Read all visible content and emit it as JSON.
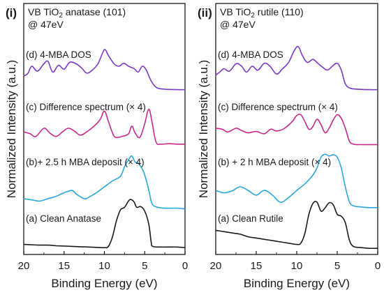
{
  "chart_data": [
    {
      "type": "line",
      "panel_label": "(i)",
      "title_prefix": "VB TiO",
      "title_sub": "2",
      "title_suffix": " anatase (101)",
      "subtitle": "@ 47eV",
      "xlabel": "Binding Energy (eV)",
      "ylabel": "Normalized Intensity (a.u.)",
      "xlim": [
        20,
        0
      ],
      "x_reversed": true,
      "x_ticks": [
        20,
        15,
        10,
        5,
        0
      ],
      "y_ticks": "none",
      "grid": false,
      "series": [
        {
          "name": "(a) Clean Anatase",
          "color": "#1a1a1a",
          "points": [
            [
              20,
              0.08
            ],
            [
              19,
              0.075
            ],
            [
              18,
              0.07
            ],
            [
              17,
              0.07
            ],
            [
              16,
              0.06
            ],
            [
              15,
              0.055
            ],
            [
              14,
              0.05
            ],
            [
              13,
              0.045
            ],
            [
              12,
              0.04
            ],
            [
              11,
              0.035
            ],
            [
              10,
              0.03
            ],
            [
              9.5,
              0.05
            ],
            [
              9,
              0.2
            ],
            [
              8.5,
              0.45
            ],
            [
              8,
              0.62
            ],
            [
              7.5,
              0.66
            ],
            [
              7,
              0.76
            ],
            [
              6.7,
              0.78
            ],
            [
              6.3,
              0.74
            ],
            [
              6,
              0.66
            ],
            [
              5.5,
              0.67
            ],
            [
              5,
              0.6
            ],
            [
              4.5,
              0.4
            ],
            [
              4.2,
              0.12
            ],
            [
              4,
              0.05
            ],
            [
              3,
              0.04
            ],
            [
              2,
              0.04
            ],
            [
              1,
              0.04
            ],
            [
              0,
              0.03
            ]
          ]
        },
        {
          "name": "(b)+ 2.5 h MBA deposit (× 4)",
          "color": "#29a8de",
          "points": [
            [
              20,
              0.2
            ],
            [
              19,
              0.18
            ],
            [
              18,
              0.16
            ],
            [
              17,
              0.2
            ],
            [
              16,
              0.24
            ],
            [
              15,
              0.3
            ],
            [
              14,
              0.34
            ],
            [
              13.5,
              0.28
            ],
            [
              12.5,
              0.2
            ],
            [
              12,
              0.22
            ],
            [
              11,
              0.3
            ],
            [
              10,
              0.4
            ],
            [
              9,
              0.5
            ],
            [
              8,
              0.58
            ],
            [
              7.5,
              0.74
            ],
            [
              7,
              0.86
            ],
            [
              6.6,
              0.92
            ],
            [
              6.2,
              0.82
            ],
            [
              5.8,
              0.8
            ],
            [
              5.3,
              0.7
            ],
            [
              5,
              0.6
            ],
            [
              4.5,
              0.35
            ],
            [
              4.1,
              0.12
            ],
            [
              3.5,
              0.06
            ],
            [
              2.5,
              0.04
            ],
            [
              1,
              0.04
            ],
            [
              0,
              0.03
            ]
          ]
        },
        {
          "name": "(c) Difference spectrum (× 4)",
          "color": "#c8278c",
          "points": [
            [
              20,
              0.32
            ],
            [
              19.2,
              0.28
            ],
            [
              18.5,
              0.22
            ],
            [
              17.5,
              0.4
            ],
            [
              16.8,
              0.3
            ],
            [
              16,
              0.22
            ],
            [
              15.2,
              0.32
            ],
            [
              14.5,
              0.4
            ],
            [
              13.8,
              0.35
            ],
            [
              13,
              0.25
            ],
            [
              12.2,
              0.32
            ],
            [
              11.2,
              0.46
            ],
            [
              10.5,
              0.6
            ],
            [
              10,
              0.78
            ],
            [
              9.5,
              0.55
            ],
            [
              9,
              0.3
            ],
            [
              8.6,
              0.2
            ],
            [
              7.8,
              0.22
            ],
            [
              7,
              0.28
            ],
            [
              6.6,
              0.45
            ],
            [
              6.2,
              0.3
            ],
            [
              5.6,
              0.2
            ],
            [
              5,
              0.5
            ],
            [
              4.5,
              0.82
            ],
            [
              4.1,
              0.55
            ],
            [
              3.6,
              0.1
            ],
            [
              3,
              0.05
            ],
            [
              2,
              0.06
            ],
            [
              1,
              0.05
            ],
            [
              0,
              0.05
            ]
          ]
        },
        {
          "name": "(d) 4-MBA DOS",
          "color": "#7b38c8",
          "points": [
            [
              20,
              0.3
            ],
            [
              19.5,
              0.35
            ],
            [
              19,
              0.5
            ],
            [
              18.3,
              0.4
            ],
            [
              17.5,
              0.55
            ],
            [
              17,
              0.6
            ],
            [
              16.4,
              0.38
            ],
            [
              15.7,
              0.52
            ],
            [
              15,
              0.44
            ],
            [
              14.3,
              0.58
            ],
            [
              13.5,
              0.55
            ],
            [
              12.8,
              0.46
            ],
            [
              12.2,
              0.36
            ],
            [
              11.5,
              0.42
            ],
            [
              10.8,
              0.55
            ],
            [
              10.2,
              0.78
            ],
            [
              9.9,
              0.84
            ],
            [
              9.5,
              0.72
            ],
            [
              8.8,
              0.55
            ],
            [
              8.2,
              0.5
            ],
            [
              7.6,
              0.56
            ],
            [
              7,
              0.5
            ],
            [
              6.3,
              0.45
            ],
            [
              5.8,
              0.38
            ],
            [
              5.3,
              0.5
            ],
            [
              4.8,
              0.42
            ],
            [
              4.2,
              0.2
            ],
            [
              3.5,
              0.06
            ],
            [
              2.5,
              0.03
            ],
            [
              1,
              0.02
            ],
            [
              0,
              0.02
            ]
          ]
        }
      ]
    },
    {
      "type": "line",
      "panel_label": "(ii)",
      "title_prefix": "VB TiO",
      "title_sub": "2",
      "title_suffix": " rutile (110)",
      "subtitle": "@ 47eV",
      "xlabel": "Binding Energy (eV)",
      "ylabel": "Normalized Intensity (a.u.)",
      "xlim": [
        20,
        0
      ],
      "x_reversed": true,
      "x_ticks": [
        20,
        15,
        10,
        5,
        0
      ],
      "y_ticks": "none",
      "grid": false,
      "series": [
        {
          "name": "(a) Clean Rutile",
          "color": "#1a1a1a",
          "points": [
            [
              20,
              0.3
            ],
            [
              19,
              0.28
            ],
            [
              18,
              0.26
            ],
            [
              17,
              0.24
            ],
            [
              16,
              0.2
            ],
            [
              15,
              0.18
            ],
            [
              14,
              0.16
            ],
            [
              13,
              0.14
            ],
            [
              12,
              0.12
            ],
            [
              11,
              0.1
            ],
            [
              10,
              0.08
            ],
            [
              9.5,
              0.1
            ],
            [
              9,
              0.25
            ],
            [
              8.5,
              0.55
            ],
            [
              8,
              0.72
            ],
            [
              7.5,
              0.74
            ],
            [
              7,
              0.6
            ],
            [
              6.5,
              0.65
            ],
            [
              6,
              0.73
            ],
            [
              5.5,
              0.7
            ],
            [
              5,
              0.55
            ],
            [
              4.5,
              0.52
            ],
            [
              4,
              0.42
            ],
            [
              3.5,
              0.15
            ],
            [
              3,
              0.05
            ],
            [
              2,
              0.03
            ],
            [
              1,
              0.02
            ],
            [
              0,
              0.02
            ]
          ]
        },
        {
          "name": "(b) + 2 h MBA deposit (× 4)",
          "color": "#29a8de",
          "points": [
            [
              20,
              0.34
            ],
            [
              19,
              0.3
            ],
            [
              18,
              0.33
            ],
            [
              17,
              0.4
            ],
            [
              16,
              0.34
            ],
            [
              15,
              0.26
            ],
            [
              14,
              0.34
            ],
            [
              13,
              0.26
            ],
            [
              12,
              0.14
            ],
            [
              11,
              0.22
            ],
            [
              10,
              0.34
            ],
            [
              9,
              0.45
            ],
            [
              8,
              0.6
            ],
            [
              7.5,
              0.72
            ],
            [
              7,
              0.9
            ],
            [
              6.5,
              0.95
            ],
            [
              6,
              0.92
            ],
            [
              5.5,
              0.94
            ],
            [
              5,
              0.9
            ],
            [
              4.5,
              0.72
            ],
            [
              4,
              0.4
            ],
            [
              3.5,
              0.15
            ],
            [
              3,
              0.08
            ],
            [
              2,
              0.06
            ],
            [
              1,
              0.05
            ],
            [
              0,
              0.05
            ]
          ]
        },
        {
          "name": "(c) Difference spectrum (× 4)",
          "color": "#c8278c",
          "points": [
            [
              20,
              0.4
            ],
            [
              19.2,
              0.38
            ],
            [
              18.5,
              0.32
            ],
            [
              17.5,
              0.4
            ],
            [
              16.8,
              0.35
            ],
            [
              16,
              0.3
            ],
            [
              15,
              0.33
            ],
            [
              14,
              0.28
            ],
            [
              13.2,
              0.38
            ],
            [
              12.5,
              0.34
            ],
            [
              11.5,
              0.4
            ],
            [
              10.5,
              0.56
            ],
            [
              10,
              0.68
            ],
            [
              9.5,
              0.7
            ],
            [
              9,
              0.55
            ],
            [
              8.5,
              0.38
            ],
            [
              8,
              0.44
            ],
            [
              7.5,
              0.6
            ],
            [
              7,
              0.48
            ],
            [
              6.5,
              0.3
            ],
            [
              6,
              0.4
            ],
            [
              5.5,
              0.58
            ],
            [
              5,
              0.7
            ],
            [
              4.5,
              0.62
            ],
            [
              4,
              0.4
            ],
            [
              3.5,
              0.12
            ],
            [
              3,
              0.05
            ],
            [
              2,
              0.04
            ],
            [
              1,
              0.04
            ],
            [
              0,
              0.04
            ]
          ]
        },
        {
          "name": "(d) 4-MBA DOS",
          "color": "#7b38c8",
          "points": [
            [
              20,
              0.32
            ],
            [
              19.5,
              0.38
            ],
            [
              19,
              0.45
            ],
            [
              18.3,
              0.4
            ],
            [
              17.5,
              0.55
            ],
            [
              16.8,
              0.5
            ],
            [
              16.2,
              0.38
            ],
            [
              15.5,
              0.5
            ],
            [
              14.8,
              0.42
            ],
            [
              14,
              0.56
            ],
            [
              13.3,
              0.5
            ],
            [
              12.5,
              0.34
            ],
            [
              11.8,
              0.44
            ],
            [
              11,
              0.58
            ],
            [
              10.3,
              0.82
            ],
            [
              9.8,
              0.9
            ],
            [
              9.3,
              0.72
            ],
            [
              8.7,
              0.58
            ],
            [
              8,
              0.64
            ],
            [
              7.4,
              0.56
            ],
            [
              6.8,
              0.48
            ],
            [
              6.2,
              0.42
            ],
            [
              5.6,
              0.5
            ],
            [
              5,
              0.56
            ],
            [
              4.5,
              0.42
            ],
            [
              4,
              0.14
            ],
            [
              3.4,
              0.05
            ],
            [
              2.5,
              0.03
            ],
            [
              1,
              0.02
            ],
            [
              0,
              0.02
            ]
          ]
        }
      ]
    }
  ]
}
